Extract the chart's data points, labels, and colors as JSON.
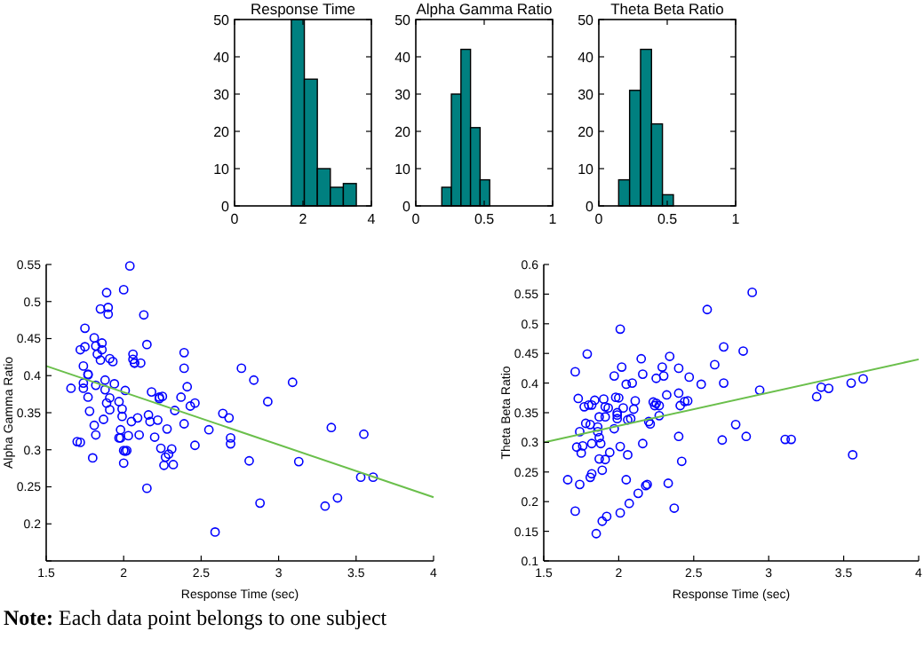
{
  "chart_data": [
    {
      "type": "histogram",
      "title": "Response Time",
      "bins": [
        1.66,
        2.04,
        2.42,
        2.8,
        3.18,
        3.56
      ],
      "values": [
        50,
        34,
        10,
        5,
        6
      ],
      "color": "#008080",
      "xlim": [
        0,
        4
      ],
      "xticks": [
        0,
        2,
        4
      ],
      "ylim": [
        0,
        50
      ],
      "yticks": [
        0,
        10,
        20,
        30,
        40,
        50
      ]
    },
    {
      "type": "histogram",
      "title": "Alpha Gamma Ratio",
      "bins": [
        0.19,
        0.26,
        0.33,
        0.4,
        0.47,
        0.54
      ],
      "values": [
        5,
        30,
        42,
        21,
        7
      ],
      "color": "#008080",
      "xlim": [
        0,
        1
      ],
      "xticks": [
        0,
        0.5,
        1
      ],
      "ylim": [
        0,
        50
      ],
      "yticks": [
        0,
        10,
        20,
        30,
        40,
        50
      ]
    },
    {
      "type": "histogram",
      "title": "Theta Beta Ratio",
      "bins": [
        0.145,
        0.225,
        0.305,
        0.385,
        0.465,
        0.545
      ],
      "values": [
        7,
        31,
        42,
        22,
        3
      ],
      "color": "#008080",
      "xlim": [
        0,
        1
      ],
      "xticks": [
        0,
        0.5,
        1
      ],
      "ylim": [
        0,
        50
      ],
      "yticks": [
        0,
        10,
        20,
        30,
        40,
        50
      ]
    },
    {
      "type": "scatter",
      "xlabel": "Response Time (sec)",
      "ylabel": "Alpha Gamma Ratio",
      "xlim": [
        1.5,
        4
      ],
      "xticks": [
        1.5,
        2,
        2.5,
        3,
        3.5,
        4
      ],
      "ylim": [
        0.15,
        0.55
      ],
      "yticks": [
        {
          "value": 0.15,
          "label": null
        },
        0.2,
        0.25,
        0.3,
        0.35,
        0.4,
        0.45,
        0.5,
        0.55
      ],
      "series": [
        {
          "type": "scatter",
          "color": "#0000ff",
          "marker": "circle",
          "x": [
            1.66,
            1.7,
            1.72,
            1.72,
            1.74,
            1.74,
            1.75,
            1.75,
            1.74,
            1.77,
            1.77,
            1.77,
            1.78,
            1.8,
            1.81,
            1.81,
            1.82,
            1.82,
            1.82,
            1.83,
            1.85,
            1.86,
            1.85,
            1.86,
            1.87,
            1.88,
            1.88,
            1.89,
            1.89,
            1.9,
            1.9,
            1.91,
            1.91,
            1.91,
            1.93,
            1.94,
            1.97,
            1.97,
            1.98,
            1.98,
            1.99,
            1.99,
            2.0,
            2.0,
            2.0,
            2.01,
            2.01,
            2.02,
            2.03,
            2.04,
            2.05,
            2.06,
            2.06,
            2.07,
            2.07,
            2.09,
            2.1,
            2.11,
            2.13,
            2.15,
            2.15,
            2.16,
            2.17,
            2.18,
            2.2,
            2.22,
            2.23,
            2.23,
            2.24,
            2.25,
            2.26,
            2.27,
            2.28,
            2.29,
            2.31,
            2.32,
            2.33,
            2.37,
            2.39,
            2.39,
            2.39,
            2.41,
            2.43,
            2.46,
            2.46,
            2.55,
            2.59,
            2.64,
            2.68,
            2.69,
            2.69,
            2.76,
            2.81,
            2.84,
            2.88,
            2.93,
            3.09,
            3.13,
            3.3,
            3.34,
            3.38,
            3.53,
            3.55,
            3.61
          ],
          "values": [
            0.383,
            0.311,
            0.31,
            0.435,
            0.413,
            0.39,
            0.464,
            0.439,
            0.383,
            0.402,
            0.401,
            0.371,
            0.352,
            0.289,
            0.451,
            0.333,
            0.387,
            0.32,
            0.44,
            0.429,
            0.49,
            0.444,
            0.421,
            0.435,
            0.341,
            0.394,
            0.381,
            0.512,
            0.363,
            0.483,
            0.492,
            0.37,
            0.354,
            0.423,
            0.419,
            0.389,
            0.365,
            0.316,
            0.327,
            0.316,
            0.355,
            0.345,
            0.282,
            0.299,
            0.516,
            0.38,
            0.298,
            0.299,
            0.319,
            0.548,
            0.338,
            0.429,
            0.422,
            0.417,
            0.417,
            0.343,
            0.32,
            0.417,
            0.482,
            0.248,
            0.442,
            0.347,
            0.338,
            0.378,
            0.317,
            0.34,
            0.371,
            0.369,
            0.302,
            0.372,
            0.279,
            0.29,
            0.328,
            0.294,
            0.301,
            0.28,
            0.353,
            0.371,
            0.41,
            0.335,
            0.431,
            0.385,
            0.359,
            0.306,
            0.363,
            0.327,
            0.189,
            0.349,
            0.343,
            0.316,
            0.308,
            0.41,
            0.285,
            0.394,
            0.228,
            0.365,
            0.391,
            0.284,
            0.224,
            0.33,
            0.235,
            0.263,
            0.321,
            0.263
          ]
        },
        {
          "type": "line",
          "color": "#6abf4b",
          "x": [
            1.5,
            4
          ],
          "values": [
            0.413,
            0.236
          ]
        }
      ]
    },
    {
      "type": "scatter",
      "xlabel": "Response Time (sec)",
      "ylabel": "Theta Beta Ratio",
      "xlim": [
        1.5,
        4
      ],
      "xticks": [
        1.5,
        2,
        2.5,
        3,
        3.5,
        4
      ],
      "ylim": [
        0.1,
        0.6
      ],
      "yticks": [
        0.1,
        0.15,
        0.2,
        0.25,
        0.3,
        0.35,
        0.4,
        0.45,
        0.5,
        0.55,
        0.6
      ],
      "annotations": [
        "Note: Each data point belongs to one subject"
      ],
      "series": [
        {
          "type": "scatter",
          "color": "#0000ff",
          "marker": "circle",
          "x": [
            1.66,
            1.71,
            1.71,
            1.72,
            1.73,
            1.74,
            1.74,
            1.75,
            1.76,
            1.77,
            1.78,
            1.79,
            1.8,
            1.81,
            1.81,
            1.82,
            1.82,
            1.82,
            1.84,
            1.85,
            1.86,
            1.86,
            1.87,
            1.87,
            1.87,
            1.88,
            1.89,
            1.89,
            1.9,
            1.91,
            1.91,
            1.91,
            1.92,
            1.93,
            1.94,
            1.97,
            1.97,
            1.98,
            1.99,
            1.99,
            1.99,
            2.0,
            2.01,
            2.01,
            2.01,
            2.02,
            2.03,
            2.05,
            2.05,
            2.06,
            2.06,
            2.07,
            2.08,
            2.09,
            2.1,
            2.11,
            2.13,
            2.15,
            2.16,
            2.16,
            2.18,
            2.19,
            2.2,
            2.21,
            2.23,
            2.24,
            2.25,
            2.25,
            2.27,
            2.27,
            2.29,
            2.3,
            2.32,
            2.33,
            2.34,
            2.37,
            2.4,
            2.4,
            2.4,
            2.41,
            2.42,
            2.44,
            2.46,
            2.47,
            2.55,
            2.59,
            2.64,
            2.69,
            2.7,
            2.7,
            2.78,
            2.83,
            2.85,
            2.89,
            2.94,
            3.11,
            3.15,
            3.32,
            3.35,
            3.4,
            3.55,
            3.56,
            3.63
          ],
          "values": [
            0.237,
            0.419,
            0.184,
            0.292,
            0.374,
            0.318,
            0.229,
            0.282,
            0.294,
            0.36,
            0.332,
            0.449,
            0.363,
            0.241,
            0.33,
            0.298,
            0.247,
            0.363,
            0.371,
            0.146,
            0.326,
            0.318,
            0.343,
            0.272,
            0.308,
            0.298,
            0.253,
            0.167,
            0.373,
            0.343,
            0.271,
            0.36,
            0.175,
            0.358,
            0.283,
            0.412,
            0.323,
            0.376,
            0.346,
            0.34,
            0.35,
            0.375,
            0.491,
            0.181,
            0.293,
            0.427,
            0.358,
            0.237,
            0.398,
            0.338,
            0.279,
            0.197,
            0.34,
            0.4,
            0.356,
            0.37,
            0.214,
            0.441,
            0.298,
            0.415,
            0.227,
            0.229,
            0.335,
            0.331,
            0.368,
            0.362,
            0.366,
            0.408,
            0.345,
            0.362,
            0.427,
            0.412,
            0.38,
            0.231,
            0.445,
            0.189,
            0.383,
            0.425,
            0.31,
            0.362,
            0.268,
            0.369,
            0.37,
            0.41,
            0.398,
            0.524,
            0.431,
            0.304,
            0.461,
            0.4,
            0.33,
            0.454,
            0.31,
            0.553,
            0.388,
            0.305,
            0.305,
            0.377,
            0.393,
            0.391,
            0.4,
            0.279,
            0.407
          ]
        },
        {
          "type": "line",
          "color": "#6abf4b",
          "x": [
            1.5,
            4
          ],
          "values": [
            0.3,
            0.44
          ]
        }
      ]
    }
  ]
}
